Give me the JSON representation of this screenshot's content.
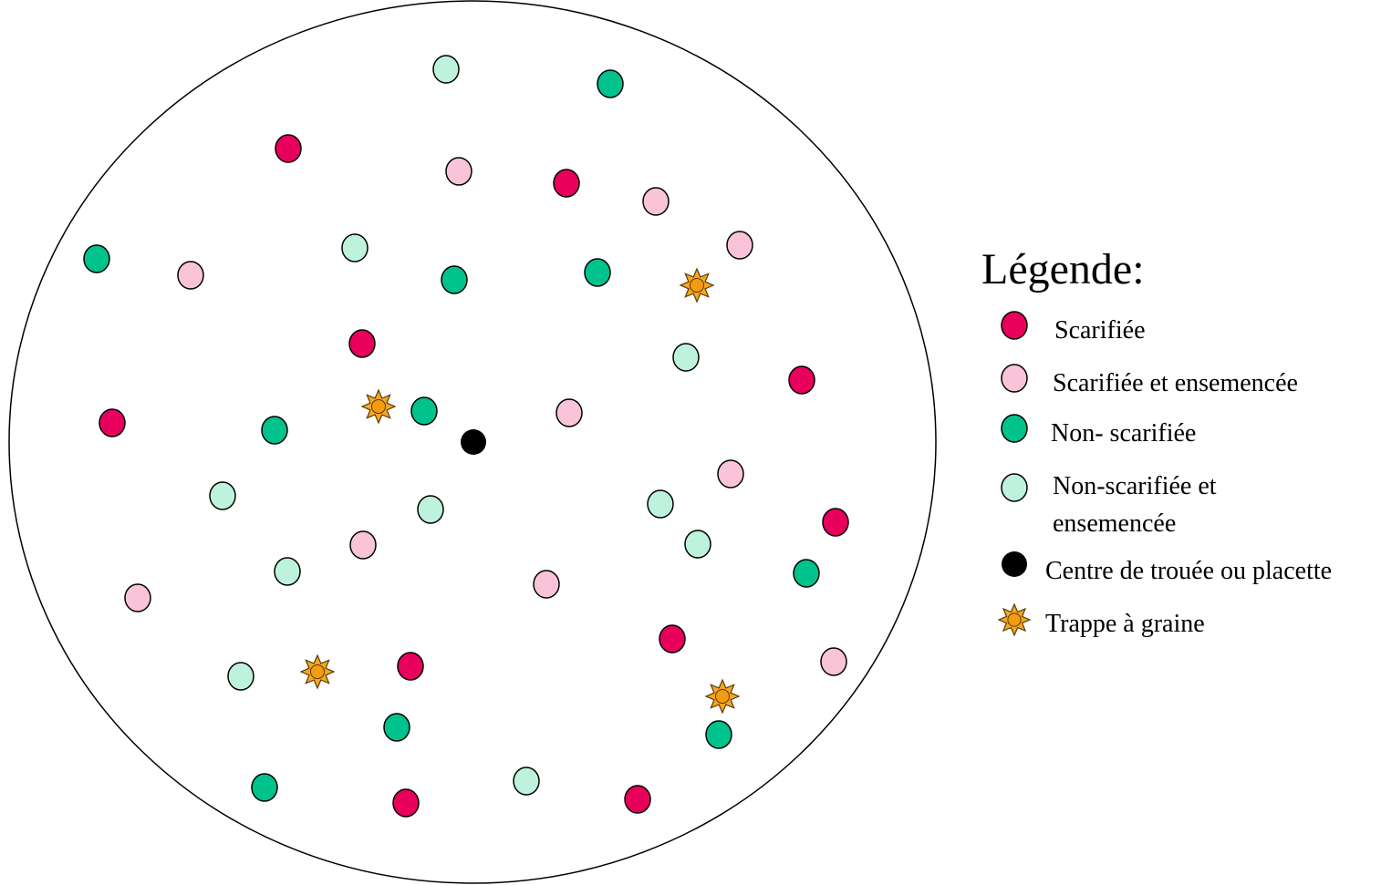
{
  "legend": {
    "title": "Légende:",
    "items": [
      {
        "label": "Scarifiée"
      },
      {
        "label": "Scarifiée et ensemencée"
      },
      {
        "label": "Non- scarifiée"
      },
      {
        "label": "Non-scarifiée et ensemencée"
      },
      {
        "label": "Centre de trouée ou placette"
      },
      {
        "label": "Trappe à graine"
      }
    ]
  }
}
